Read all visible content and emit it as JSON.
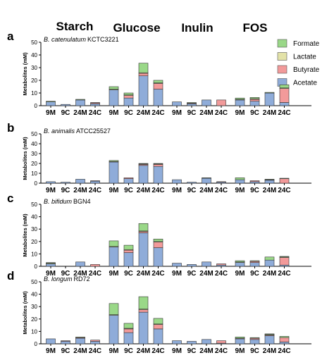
{
  "groups": [
    "Starch",
    "Glucose",
    "Inulin",
    "FOS"
  ],
  "legend": [
    {
      "name": "Formate",
      "color": "#9ad888"
    },
    {
      "name": "Lactate",
      "color": "#e3e2a8"
    },
    {
      "name": "Butyrate",
      "color": "#f29a9a"
    },
    {
      "name": "Acetate",
      "color": "#8facd9"
    }
  ],
  "chart_data": [
    {
      "type": "bar",
      "stacked": true,
      "panel": "a",
      "species": "B. catenulatum",
      "strain": "KCTC3221",
      "ylabel": "Metabolites (mM)",
      "ylim": [
        0,
        50
      ],
      "yticks": [
        0,
        10,
        20,
        30,
        40,
        50
      ],
      "categories": [
        "9M",
        "9C",
        "24M",
        "24C",
        "9M",
        "9C",
        "24M",
        "24C",
        "9M",
        "9C",
        "24M",
        "24C",
        "9M",
        "9C",
        "24M",
        "24C"
      ],
      "series": [
        {
          "name": "Acetate",
          "values": [
            3.0,
            1.0,
            4.5,
            1.5,
            12.5,
            6.0,
            23.5,
            13.0,
            3.0,
            1.5,
            4.5,
            0.0,
            4.5,
            3.5,
            10.0,
            2.5
          ]
        },
        {
          "name": "Butyrate",
          "values": [
            0.0,
            0.0,
            0.0,
            0.8,
            0.0,
            2.0,
            2.0,
            4.5,
            0.0,
            0.5,
            0.0,
            4.5,
            0.0,
            1.5,
            0.0,
            11.0
          ]
        },
        {
          "name": "Lactate",
          "values": [
            0.0,
            0.0,
            0.0,
            0.0,
            0.5,
            0.5,
            0.5,
            0.5,
            0.0,
            0.0,
            0.0,
            0.0,
            0.5,
            0.5,
            0.0,
            0.5
          ]
        },
        {
          "name": "Formate",
          "values": [
            0.5,
            0.0,
            0.5,
            0.2,
            2.0,
            1.5,
            7.5,
            2.0,
            0.0,
            0.5,
            0.0,
            0.0,
            1.0,
            1.0,
            0.5,
            2.5
          ]
        }
      ]
    },
    {
      "type": "bar",
      "stacked": true,
      "panel": "b",
      "species": "B. animalis",
      "strain": "ATCC25527",
      "ylabel": "Metabolites (mM)",
      "ylim": [
        0,
        50
      ],
      "yticks": [
        0,
        10,
        20,
        30,
        40,
        50
      ],
      "categories": [
        "9M",
        "9C",
        "24M",
        "24C",
        "9M",
        "9C",
        "24M",
        "24C",
        "9M",
        "9C",
        "24M",
        "24C",
        "9M",
        "9C",
        "24M",
        "24C"
      ],
      "series": [
        {
          "name": "Acetate",
          "values": [
            1.5,
            1.0,
            4.0,
            2.0,
            21.5,
            4.5,
            18.0,
            17.0,
            3.5,
            1.0,
            5.0,
            1.0,
            3.5,
            1.5,
            3.0,
            0.0
          ]
        },
        {
          "name": "Butyrate",
          "values": [
            0.0,
            0.0,
            0.0,
            0.5,
            0.5,
            1.0,
            1.0,
            2.0,
            0.0,
            0.0,
            0.0,
            0.5,
            0.0,
            1.0,
            0.5,
            4.5
          ]
        },
        {
          "name": "Lactate",
          "values": [
            0.0,
            0.0,
            0.0,
            0.0,
            0.0,
            0.0,
            0.5,
            0.5,
            0.0,
            0.0,
            0.0,
            0.0,
            0.0,
            0.0,
            0.0,
            0.0
          ]
        },
        {
          "name": "Formate",
          "values": [
            0.0,
            0.0,
            0.0,
            0.0,
            1.0,
            0.0,
            0.5,
            0.5,
            0.0,
            0.0,
            0.5,
            0.0,
            2.0,
            0.0,
            0.5,
            0.5
          ]
        }
      ]
    },
    {
      "type": "bar",
      "stacked": true,
      "panel": "c",
      "species": "B. bifidum",
      "strain": "BGN4",
      "ylabel": "Metabolites (mM)",
      "ylim": [
        0,
        50
      ],
      "yticks": [
        0,
        10,
        20,
        30,
        40,
        50
      ],
      "categories": [
        "9M",
        "9C",
        "24M",
        "24C",
        "9M",
        "9C",
        "24M",
        "24C",
        "9M",
        "9C",
        "24M",
        "24C",
        "9M",
        "9C",
        "24M",
        "24C"
      ],
      "series": [
        {
          "name": "Acetate",
          "values": [
            2.0,
            0.0,
            3.5,
            0.0,
            15.5,
            11.0,
            27.0,
            15.0,
            2.5,
            1.5,
            3.5,
            1.0,
            3.0,
            3.0,
            5.0,
            1.0
          ]
        },
        {
          "name": "Butyrate",
          "values": [
            0.0,
            0.0,
            0.0,
            1.5,
            0.0,
            2.0,
            1.0,
            4.5,
            0.0,
            0.0,
            0.0,
            1.0,
            0.0,
            1.0,
            0.0,
            6.0
          ]
        },
        {
          "name": "Lactate",
          "values": [
            0.5,
            0.0,
            0.0,
            0.0,
            0.5,
            0.5,
            0.5,
            0.5,
            0.0,
            0.0,
            0.0,
            0.0,
            0.5,
            0.0,
            0.0,
            0.5
          ]
        },
        {
          "name": "Formate",
          "values": [
            0.5,
            0.0,
            0.0,
            0.0,
            4.5,
            3.5,
            6.0,
            2.0,
            0.0,
            0.0,
            0.0,
            0.0,
            1.0,
            0.5,
            2.5,
            0.5
          ]
        }
      ]
    },
    {
      "type": "bar",
      "stacked": true,
      "panel": "d",
      "species": "B. longum",
      "strain": "RD72",
      "ylabel": "Metabolites (mM)",
      "ylim": [
        0,
        50
      ],
      "yticks": [
        0,
        10,
        20,
        30,
        40,
        50
      ],
      "categories": [
        "9M",
        "9C",
        "24M",
        "24C",
        "9M",
        "9C",
        "24M",
        "24C",
        "9M",
        "9C",
        "24M",
        "24C",
        "9M",
        "9C",
        "24M",
        "24C"
      ],
      "series": [
        {
          "name": "Acetate",
          "values": [
            4.0,
            2.0,
            4.5,
            2.0,
            23.0,
            9.0,
            25.5,
            12.0,
            2.5,
            2.0,
            3.5,
            0.5,
            4.0,
            3.5,
            6.5,
            1.5
          ]
        },
        {
          "name": "Butyrate",
          "values": [
            0.0,
            0.5,
            0.5,
            1.0,
            0.0,
            3.0,
            2.0,
            3.5,
            0.0,
            0.0,
            0.0,
            2.0,
            0.5,
            1.0,
            0.5,
            3.5
          ]
        },
        {
          "name": "Lactate",
          "values": [
            0.0,
            0.0,
            0.0,
            0.0,
            0.5,
            0.5,
            0.5,
            0.5,
            0.0,
            0.0,
            0.0,
            0.0,
            0.0,
            0.0,
            0.5,
            0.0
          ]
        },
        {
          "name": "Formate",
          "values": [
            0.0,
            0.0,
            0.5,
            0.0,
            9.0,
            4.0,
            10.0,
            4.5,
            0.0,
            0.0,
            0.0,
            0.0,
            1.0,
            0.5,
            0.5,
            1.0
          ]
        }
      ]
    }
  ]
}
